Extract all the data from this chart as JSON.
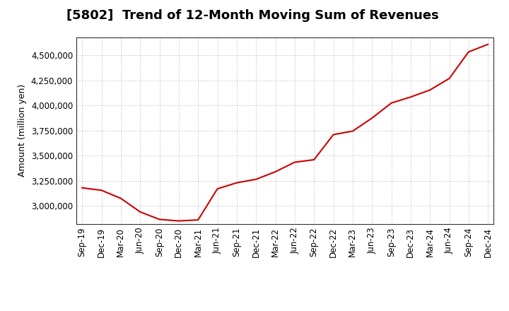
{
  "title": "[5802]  Trend of 12-Month Moving Sum of Revenues",
  "ylabel": "Amount (million yen)",
  "line_color": "#CC0000",
  "background_color": "#FFFFFF",
  "grid_color": "#999999",
  "x_labels": [
    "Sep-19",
    "Dec-19",
    "Mar-20",
    "Jun-20",
    "Sep-20",
    "Dec-20",
    "Mar-21",
    "Jun-21",
    "Sep-21",
    "Dec-21",
    "Mar-22",
    "Jun-22",
    "Sep-22",
    "Dec-22",
    "Mar-23",
    "Jun-23",
    "Sep-23",
    "Dec-23",
    "Mar-24",
    "Jun-24",
    "Sep-24",
    "Dec-24"
  ],
  "values": [
    3180000,
    3155000,
    3075000,
    2940000,
    2865000,
    2850000,
    2860000,
    3170000,
    3230000,
    3265000,
    3340000,
    3435000,
    3460000,
    3710000,
    3745000,
    3875000,
    4025000,
    4085000,
    4155000,
    4270000,
    4535000,
    4610000
  ],
  "ylim_min": 2820000,
  "ylim_max": 4680000,
  "yticks": [
    3000000,
    3250000,
    3500000,
    3750000,
    4000000,
    4250000,
    4500000
  ],
  "title_fontsize": 13,
  "label_fontsize": 9,
  "tick_fontsize": 8.5
}
